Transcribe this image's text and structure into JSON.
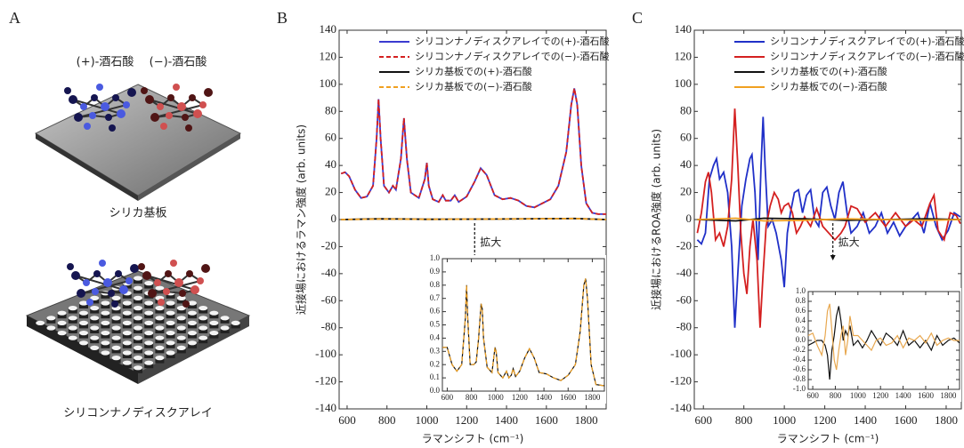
{
  "panel_a": {
    "label": "A",
    "molecules": [
      "(+)-酒石酸",
      "(−)-酒石酸"
    ],
    "substrates": [
      "シリカ基板",
      "シリコンナノディスクアレイ"
    ]
  },
  "chart_data": [
    {
      "type": "line",
      "panel": "B",
      "x_label": "ラマンシフト (cm⁻¹)",
      "y_label": "近接場におけるラマン強度 (arb. units)",
      "annotation": "拡大",
      "legend": "upper center",
      "xlim": [
        560,
        1900
      ],
      "xticks": [
        600,
        800,
        1000,
        1200,
        1400,
        1600,
        1800
      ],
      "ylim": [
        -140,
        140
      ],
      "yticks": [
        -140,
        -120,
        -100,
        -80,
        -60,
        -40,
        -20,
        0,
        20,
        40,
        60,
        80,
        100,
        120,
        140
      ],
      "x": [
        570,
        590,
        610,
        640,
        670,
        700,
        730,
        748,
        758,
        768,
        785,
        810,
        830,
        845,
        870,
        885,
        900,
        920,
        960,
        990,
        1000,
        1010,
        1030,
        1060,
        1080,
        1095,
        1120,
        1140,
        1160,
        1200,
        1240,
        1270,
        1300,
        1340,
        1380,
        1420,
        1460,
        1500,
        1540,
        1580,
        1620,
        1660,
        1700,
        1725,
        1740,
        1755,
        1775,
        1800,
        1830,
        1860,
        1900
      ],
      "series": [
        {
          "name": "シリコンナノディスクアレイでの(+)-酒石酸",
          "color": "#3b3bd0",
          "dashed": false,
          "values": [
            34,
            35,
            32,
            22,
            16,
            17,
            25,
            60,
            89,
            60,
            25,
            20,
            25,
            22,
            45,
            75,
            45,
            20,
            16,
            30,
            42,
            25,
            15,
            13,
            18,
            14,
            14,
            18,
            13,
            17,
            28,
            38,
            33,
            18,
            15,
            16,
            14,
            10,
            9,
            12,
            15,
            25,
            50,
            85,
            97,
            85,
            40,
            12,
            5,
            4,
            4
          ]
        },
        {
          "name": "シリコンナノディスクアレイでの(−)-酒石酸",
          "color": "#d42020",
          "dashed": true,
          "values": [
            34,
            35,
            32,
            22,
            16,
            17,
            25,
            60,
            89,
            60,
            25,
            20,
            25,
            22,
            45,
            75,
            45,
            20,
            16,
            30,
            42,
            25,
            15,
            13,
            18,
            14,
            14,
            18,
            13,
            17,
            28,
            38,
            33,
            18,
            15,
            16,
            14,
            10,
            9,
            12,
            15,
            25,
            50,
            85,
            97,
            85,
            40,
            12,
            5,
            4,
            4
          ]
        },
        {
          "name": "シリカ基板での(+)-酒石酸",
          "color": "#111111",
          "dashed": false,
          "x": [
            570,
            760,
            890,
            1000,
            1280,
            1740,
            1900
          ],
          "values": [
            0,
            0.5,
            0.4,
            0.2,
            0.3,
            0.8,
            0
          ]
        },
        {
          "name": "シリカ基板での(−)-酒石酸",
          "color": "#f0a020",
          "dashed": true,
          "x": [
            570,
            760,
            890,
            1000,
            1280,
            1740,
            1900
          ],
          "values": [
            0,
            0.4,
            0.3,
            0.2,
            0.3,
            0.7,
            0
          ]
        }
      ]
    },
    {
      "type": "line",
      "inset": true,
      "xlim": [
        560,
        1900
      ],
      "xticks": [
        600,
        800,
        1000,
        1200,
        1400,
        1600,
        1800
      ],
      "ylim": [
        0,
        1
      ],
      "yticks": [
        {
          "value": 0,
          "label": "0.0"
        },
        {
          "value": 0.1,
          "label": "0.1"
        },
        {
          "value": 0.2,
          "label": "0.2"
        },
        {
          "value": 0.3,
          "label": "0.3"
        },
        {
          "value": 0.4,
          "label": "0.4"
        },
        {
          "value": 0.5,
          "label": "0.5"
        },
        {
          "value": 0.6,
          "label": "0.6"
        },
        {
          "value": 0.7,
          "label": "0.7"
        },
        {
          "value": 0.8,
          "label": "0.8"
        },
        {
          "value": 0.9,
          "label": "0.9"
        },
        {
          "value": 1,
          "label": "1.0"
        }
      ],
      "x": [
        560,
        600,
        640,
        680,
        720,
        750,
        760,
        770,
        790,
        820,
        840,
        860,
        880,
        890,
        900,
        930,
        970,
        995,
        1005,
        1020,
        1060,
        1090,
        1110,
        1130,
        1145,
        1165,
        1200,
        1240,
        1280,
        1320,
        1360,
        1420,
        1480,
        1540,
        1600,
        1660,
        1700,
        1730,
        1745,
        1760,
        1790,
        1830,
        1900
      ],
      "series": [
        {
          "color": "#111111",
          "dashed": false,
          "values": [
            0.33,
            0.33,
            0.2,
            0.15,
            0.2,
            0.55,
            0.8,
            0.55,
            0.2,
            0.2,
            0.22,
            0.4,
            0.66,
            0.62,
            0.4,
            0.18,
            0.14,
            0.33,
            0.3,
            0.14,
            0.1,
            0.15,
            0.1,
            0.12,
            0.17,
            0.11,
            0.15,
            0.25,
            0.32,
            0.25,
            0.14,
            0.13,
            0.1,
            0.08,
            0.12,
            0.2,
            0.45,
            0.8,
            0.85,
            0.7,
            0.2,
            0.05,
            0.04
          ]
        },
        {
          "color": "#f0a020",
          "dashed": true,
          "values": [
            0.33,
            0.33,
            0.2,
            0.15,
            0.2,
            0.55,
            0.8,
            0.55,
            0.2,
            0.2,
            0.22,
            0.4,
            0.66,
            0.62,
            0.4,
            0.18,
            0.14,
            0.33,
            0.3,
            0.14,
            0.1,
            0.15,
            0.1,
            0.12,
            0.17,
            0.11,
            0.15,
            0.25,
            0.32,
            0.25,
            0.14,
            0.13,
            0.1,
            0.08,
            0.12,
            0.2,
            0.45,
            0.8,
            0.85,
            0.7,
            0.2,
            0.05,
            0.04
          ]
        }
      ]
    },
    {
      "type": "line",
      "panel": "C",
      "x_label": "ラマンシフト (cm⁻¹)",
      "y_label": "近接場におけるROA強度 (arb. units)",
      "annotation": "拡大",
      "legend": "upper center",
      "xlim": [
        555,
        1875
      ],
      "xticks": [
        600,
        800,
        1000,
        1200,
        1400,
        1600,
        1800
      ],
      "ylim": [
        -140,
        140
      ],
      "yticks": [
        -140,
        -120,
        -100,
        -80,
        -60,
        -40,
        -20,
        0,
        20,
        40,
        60,
        80,
        100,
        120,
        140
      ],
      "series": [
        {
          "name": "シリコンナノディスクアレイでの(+)-酒石酸",
          "color": "#2030c8",
          "dashed": false,
          "x": [
            570,
            590,
            610,
            630,
            650,
            665,
            680,
            700,
            720,
            740,
            755,
            770,
            790,
            810,
            830,
            840,
            855,
            870,
            885,
            895,
            905,
            920,
            940,
            960,
            985,
            1000,
            1015,
            1030,
            1050,
            1070,
            1090,
            1110,
            1130,
            1150,
            1170,
            1190,
            1210,
            1230,
            1250,
            1270,
            1290,
            1310,
            1330,
            1360,
            1390,
            1420,
            1450,
            1480,
            1510,
            1540,
            1570,
            1600,
            1630,
            1660,
            1690,
            1720,
            1750,
            1780,
            1810,
            1840,
            1870
          ],
          "values": [
            -15,
            -18,
            -10,
            30,
            40,
            45,
            30,
            35,
            20,
            -20,
            -80,
            -40,
            10,
            30,
            45,
            48,
            20,
            -30,
            40,
            76,
            40,
            -5,
            0,
            -10,
            -30,
            -50,
            -10,
            5,
            20,
            22,
            5,
            18,
            22,
            0,
            -5,
            20,
            24,
            10,
            0,
            20,
            28,
            5,
            -10,
            -5,
            5,
            -10,
            -5,
            5,
            -10,
            -2,
            -12,
            -5,
            0,
            5,
            -10,
            12,
            -5,
            -15,
            -8,
            5,
            2
          ]
        },
        {
          "name": "シリコンナノディスクアレイでの(−)-酒石酸",
          "color": "#d42020",
          "dashed": false,
          "x": [
            570,
            590,
            610,
            625,
            640,
            660,
            680,
            700,
            720,
            740,
            755,
            770,
            785,
            800,
            815,
            830,
            845,
            865,
            880,
            895,
            910,
            930,
            950,
            970,
            985,
            1000,
            1020,
            1040,
            1060,
            1080,
            1100,
            1130,
            1160,
            1190,
            1220,
            1250,
            1280,
            1300,
            1330,
            1360,
            1400,
            1450,
            1500,
            1550,
            1600,
            1640,
            1680,
            1720,
            1740,
            1760,
            1790,
            1820,
            1850,
            1870
          ],
          "values": [
            -10,
            5,
            28,
            35,
            20,
            -15,
            -10,
            -20,
            -5,
            30,
            82,
            40,
            -10,
            -40,
            -55,
            -20,
            0,
            -30,
            -80,
            -40,
            -5,
            10,
            20,
            15,
            5,
            10,
            12,
            5,
            -10,
            -5,
            2,
            -5,
            8,
            -5,
            -10,
            -15,
            -10,
            -5,
            10,
            8,
            -2,
            5,
            -5,
            5,
            -5,
            0,
            -5,
            12,
            18,
            -8,
            -15,
            5,
            3,
            -3
          ]
        },
        {
          "name": "シリカ基板での(+)-酒石酸",
          "color": "#111111",
          "dashed": false,
          "x": [
            570,
            760,
            900,
            1100,
            1300,
            1500,
            1700,
            1870
          ],
          "values": [
            0,
            -1,
            1,
            0.5,
            -0.5,
            0,
            0.5,
            0
          ]
        },
        {
          "name": "シリカ基板での(−)-酒石酸",
          "color": "#f0a020",
          "dashed": false,
          "x": [
            570,
            760,
            900,
            1100,
            1300,
            1500,
            1700,
            1870
          ],
          "values": [
            0,
            1,
            -1,
            -0.5,
            0.5,
            0,
            -0.5,
            0
          ]
        }
      ]
    },
    {
      "type": "line",
      "inset": true,
      "xlim": [
        560,
        1900
      ],
      "xticks": [
        600,
        800,
        1000,
        1200,
        1400,
        1600,
        1800
      ],
      "ylim": [
        -1,
        1
      ],
      "yticks": [
        {
          "value": -1,
          "label": "-1.0"
        },
        {
          "value": -0.8,
          "label": "-0.8"
        },
        {
          "value": -0.6,
          "label": "-0.6"
        },
        {
          "value": -0.4,
          "label": "-0.4"
        },
        {
          "value": -0.2,
          "label": "-0.2"
        },
        {
          "value": 0,
          "label": "0.0"
        },
        {
          "value": 0.2,
          "label": "0.2"
        },
        {
          "value": 0.4,
          "label": "0.4"
        },
        {
          "value": 0.6,
          "label": "0.6"
        },
        {
          "value": 0.8,
          "label": "0.8"
        },
        {
          "value": 1,
          "label": "1.0"
        }
      ],
      "x": [
        560,
        600,
        640,
        680,
        710,
        730,
        750,
        770,
        790,
        810,
        830,
        850,
        870,
        890,
        910,
        930,
        960,
        1000,
        1040,
        1080,
        1120,
        1160,
        1200,
        1250,
        1300,
        1350,
        1400,
        1450,
        1500,
        1550,
        1600,
        1650,
        1700,
        1750,
        1800,
        1850,
        1900
      ],
      "series": [
        {
          "color": "#111111",
          "dashed": false,
          "values": [
            -0.1,
            -0.05,
            0,
            0,
            -0.1,
            -0.3,
            -0.8,
            -0.2,
            0.1,
            0.5,
            0.7,
            0.4,
            0,
            0.2,
            0.1,
            0.3,
            -0.1,
            0,
            -0.15,
            0,
            0.2,
            0.05,
            -0.1,
            0.15,
            0.05,
            -0.1,
            0.2,
            -0.1,
            0,
            -0.15,
            0,
            -0.2,
            0.1,
            -0.1,
            0,
            0.05,
            -0.05
          ]
        },
        {
          "color": "#e8a850",
          "dashed": false,
          "values": [
            0.1,
            0.15,
            -0.1,
            -0.3,
            0.1,
            0.6,
            0.75,
            0.2,
            -0.4,
            -0.6,
            -0.2,
            0.1,
            0.3,
            -0.3,
            0,
            0.5,
            0.1,
            0.1,
            0,
            -0.1,
            -0.2,
            0,
            0.05,
            -0.1,
            -0.05,
            0.1,
            -0.15,
            0.05,
            0,
            0.1,
            -0.05,
            0.15,
            -0.1,
            0,
            0.05,
            0,
            0
          ]
        }
      ]
    }
  ]
}
